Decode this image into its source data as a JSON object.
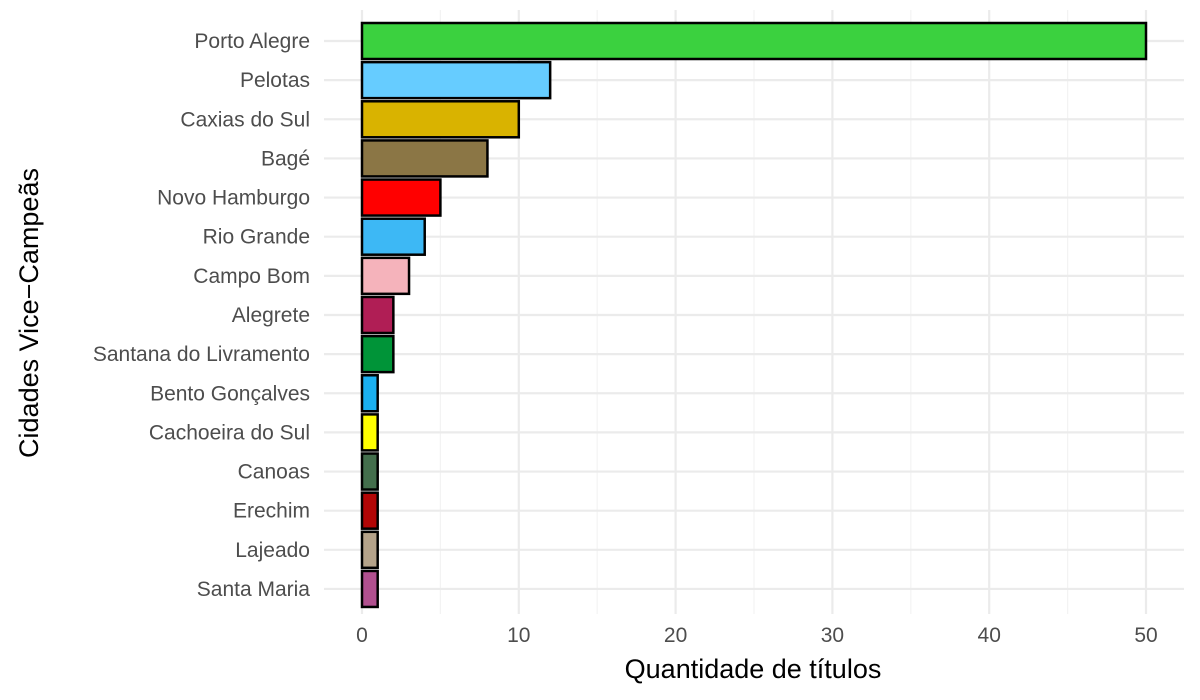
{
  "chart_data": {
    "type": "bar",
    "orientation": "horizontal",
    "title": "",
    "xlabel": "Quantidade de títulos",
    "ylabel": "Cidades Vice−Campeãs",
    "xlim": [
      0,
      52.5
    ],
    "x_ticks": [
      0,
      10,
      20,
      30,
      40,
      50
    ],
    "grid": true,
    "legend": "none",
    "categories": [
      "Porto Alegre",
      "Pelotas",
      "Caxias do Sul",
      "Bagé",
      "Novo Hamburgo",
      "Rio Grande",
      "Campo Bom",
      "Alegrete",
      "Santana do Livramento",
      "Bento Gonçalves",
      "Cachoeira do Sul",
      "Canoas",
      "Erechim",
      "Lajeado",
      "Santa Maria"
    ],
    "values": [
      50,
      12,
      10,
      8,
      5,
      4,
      3,
      2,
      2,
      1,
      1,
      1,
      1,
      1,
      1
    ],
    "colors": [
      "#3bd13f",
      "#66ccff",
      "#d9b300",
      "#8b7645",
      "#ff0000",
      "#3db8f5",
      "#f5b3bb",
      "#b01e55",
      "#009438",
      "#1ab0f0",
      "#ffff00",
      "#436e4c",
      "#b20606",
      "#b5a38a",
      "#b1508f"
    ]
  }
}
